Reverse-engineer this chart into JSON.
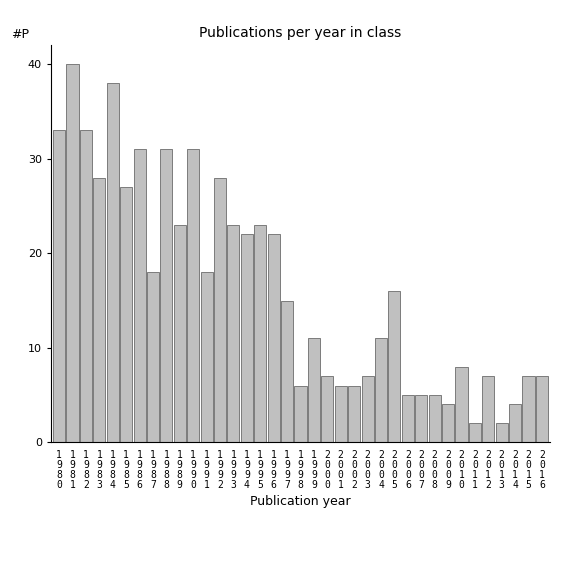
{
  "title": "Publications per year in class",
  "xlabel": "Publication year",
  "ylabel": "#P",
  "bar_color": "#c0c0c0",
  "bar_edgecolor": "#555555",
  "years": [
    "1980",
    "1981",
    "1982",
    "1983",
    "1984",
    "1985",
    "1986",
    "1987",
    "1988",
    "1989",
    "1990",
    "1991",
    "1992",
    "1993",
    "1994",
    "1995",
    "1996",
    "1997",
    "1998",
    "1999",
    "2000",
    "2001",
    "2002",
    "2003",
    "2004",
    "2005",
    "2006",
    "2007",
    "2008",
    "2009",
    "2010",
    "2011",
    "2012",
    "2013",
    "2014",
    "2015",
    "2016"
  ],
  "values": [
    33,
    40,
    33,
    28,
    38,
    27,
    31,
    18,
    31,
    23,
    31,
    18,
    28,
    23,
    22,
    23,
    22,
    15,
    6,
    11,
    7,
    6,
    6,
    7,
    11,
    16,
    5,
    5,
    5,
    4,
    8,
    2,
    7,
    2,
    4,
    7,
    7
  ],
  "ylim": [
    0,
    42
  ],
  "yticks": [
    0,
    10,
    20,
    30,
    40
  ],
  "background_color": "#ffffff",
  "title_fontsize": 10,
  "xlabel_fontsize": 9,
  "tick_fontsize": 7,
  "ylabel_fontsize": 9
}
